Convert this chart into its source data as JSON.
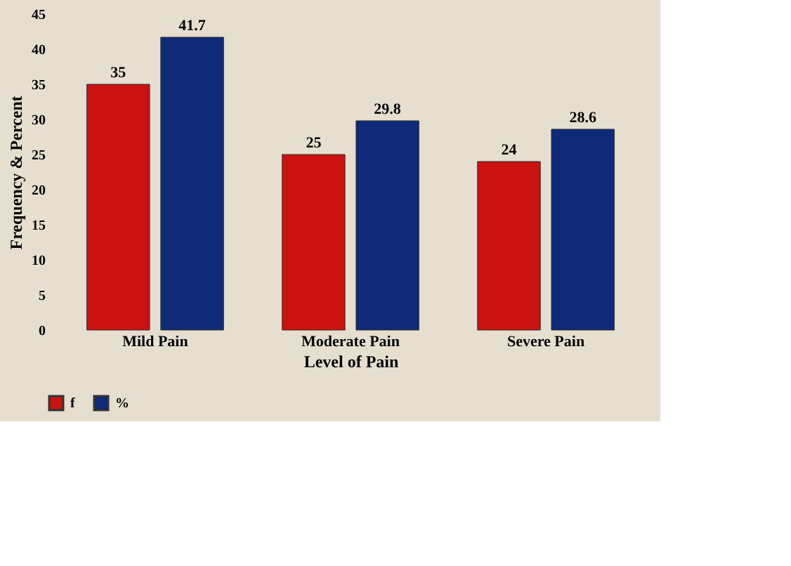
{
  "chart_data": {
    "type": "bar",
    "xlabel": "Level of Pain",
    "ylabel": "Frequency & Percent",
    "categories": [
      "Mild Pain",
      "Moderate Pain",
      "Severe Pain"
    ],
    "series": [
      {
        "name": "f",
        "color": "#cc1111",
        "values": [
          35,
          25,
          24
        ]
      },
      {
        "name": "%",
        "color": "#0f2a78",
        "values": [
          41.7,
          29.8,
          28.6
        ]
      }
    ],
    "ylim": [
      0,
      45
    ],
    "yticks": [
      0,
      5,
      10,
      15,
      20,
      25,
      30,
      35,
      40,
      45
    ],
    "grid": false,
    "legend": "bottom",
    "data_labels": true
  }
}
